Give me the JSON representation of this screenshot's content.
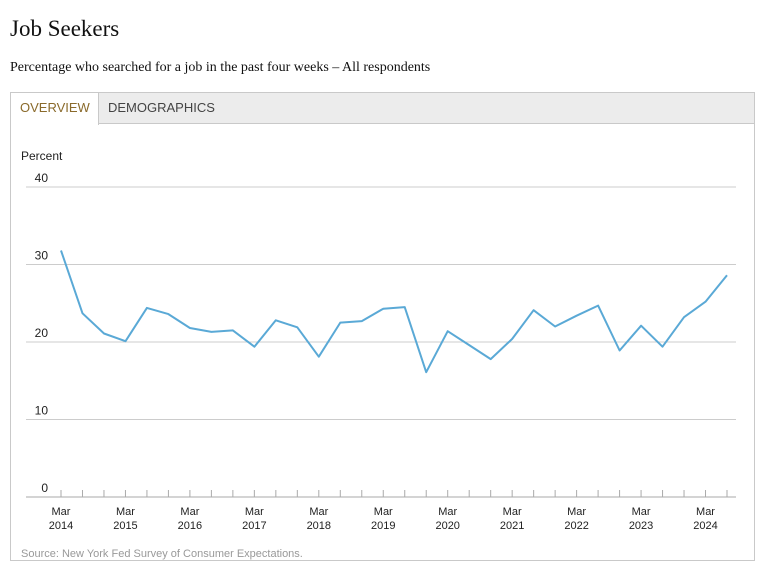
{
  "header": {
    "title": "Job Seekers",
    "subtitle": "Percentage who searched for a job in the past four weeks – All respondents"
  },
  "tabs": [
    {
      "label": "OVERVIEW",
      "active": true
    },
    {
      "label": "DEMOGRAPHICS",
      "active": false
    }
  ],
  "source": "Source: New York Fed Survey of Consumer Expectations.",
  "colors": {
    "line": "#5aa9d6",
    "active_tab": "#8a6a2b",
    "grid": "#cccccc"
  },
  "chart_data": {
    "type": "line",
    "title": "",
    "ylabel": "Percent",
    "ylim": [
      0,
      40
    ],
    "yticks": [
      0,
      10,
      20,
      30,
      40
    ],
    "grid": true,
    "x_tick_labels": [
      {
        "month": "Mar",
        "year": "2014",
        "x": "2014-03"
      },
      {
        "month": "Mar",
        "year": "2015",
        "x": "2015-03"
      },
      {
        "month": "Mar",
        "year": "2016",
        "x": "2016-03"
      },
      {
        "month": "Mar",
        "year": "2017",
        "x": "2017-03"
      },
      {
        "month": "Mar",
        "year": "2018",
        "x": "2018-03"
      },
      {
        "month": "Mar",
        "year": "2019",
        "x": "2019-03"
      },
      {
        "month": "Mar",
        "year": "2020",
        "x": "2020-03"
      },
      {
        "month": "Mar",
        "year": "2021",
        "x": "2021-03"
      },
      {
        "month": "Mar",
        "year": "2022",
        "x": "2022-03"
      },
      {
        "month": "Mar",
        "year": "2023",
        "x": "2023-03"
      },
      {
        "month": "Mar",
        "year": "2024",
        "x": "2024-03"
      }
    ],
    "minor_ticks": [
      "2014-03",
      "2014-07",
      "2014-11",
      "2015-03",
      "2015-07",
      "2015-11",
      "2016-03",
      "2016-07",
      "2016-11",
      "2017-03",
      "2017-07",
      "2017-11",
      "2018-03",
      "2018-07",
      "2018-11",
      "2019-03",
      "2019-07",
      "2019-11",
      "2020-03",
      "2020-07",
      "2020-11",
      "2021-03",
      "2021-07",
      "2021-11",
      "2022-03",
      "2022-07",
      "2022-11",
      "2023-03",
      "2023-07",
      "2023-11",
      "2024-03",
      "2024-07"
    ],
    "series": [
      {
        "x": [
          "2014-03",
          "2014-07",
          "2014-11",
          "2015-03",
          "2015-07",
          "2015-11",
          "2016-03",
          "2016-07",
          "2016-11",
          "2017-03",
          "2017-07",
          "2017-11",
          "2018-03",
          "2018-07",
          "2018-11",
          "2019-03",
          "2019-07",
          "2019-11",
          "2020-03",
          "2020-07",
          "2020-11",
          "2021-03",
          "2021-07",
          "2021-11",
          "2022-03",
          "2022-07",
          "2022-11",
          "2023-03",
          "2023-07",
          "2023-11",
          "2024-03",
          "2024-07"
        ],
        "values": [
          31.8,
          23.7,
          21.1,
          20.1,
          24.4,
          23.6,
          21.8,
          21.3,
          21.5,
          19.4,
          22.8,
          21.9,
          18.1,
          22.5,
          22.7,
          24.3,
          24.5,
          16.1,
          21.4,
          19.6,
          17.8,
          20.4,
          24.1,
          22.0,
          23.4,
          24.7,
          18.9,
          22.1,
          19.4,
          23.2,
          25.2,
          28.6
        ]
      }
    ]
  }
}
